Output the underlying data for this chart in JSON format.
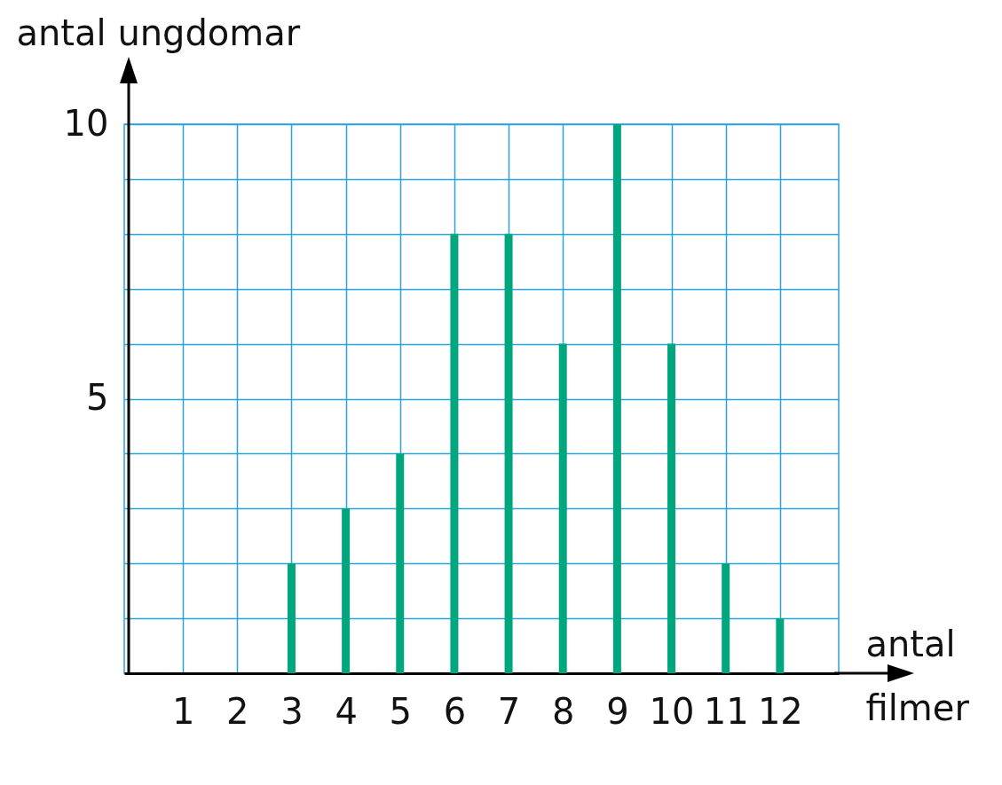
{
  "chart_data": {
    "type": "bar",
    "xlabel": "antal filmer",
    "ylabel": "antal ungdomar",
    "x": [
      1,
      2,
      3,
      4,
      5,
      6,
      7,
      8,
      9,
      10,
      11,
      12
    ],
    "values": [
      0,
      0,
      2,
      3,
      4,
      8,
      8,
      6,
      10,
      6,
      2,
      1
    ],
    "color": "#00a67e",
    "xlim": [
      0,
      13
    ],
    "xticks": [
      1,
      2,
      3,
      4,
      5,
      6,
      7,
      8,
      9,
      10,
      11,
      12
    ],
    "ylim": [
      0,
      10
    ],
    "yticks": [
      {
        "value": 0,
        "label": null
      },
      {
        "value": 1,
        "label": null
      },
      {
        "value": 2,
        "label": null
      },
      {
        "value": 3,
        "label": null
      },
      {
        "value": 4,
        "label": null
      },
      5,
      {
        "value": 6,
        "label": null
      },
      {
        "value": 7,
        "label": null
      },
      {
        "value": 8,
        "label": null
      },
      {
        "value": 9,
        "label": null
      },
      10
    ],
    "grid": true
  }
}
